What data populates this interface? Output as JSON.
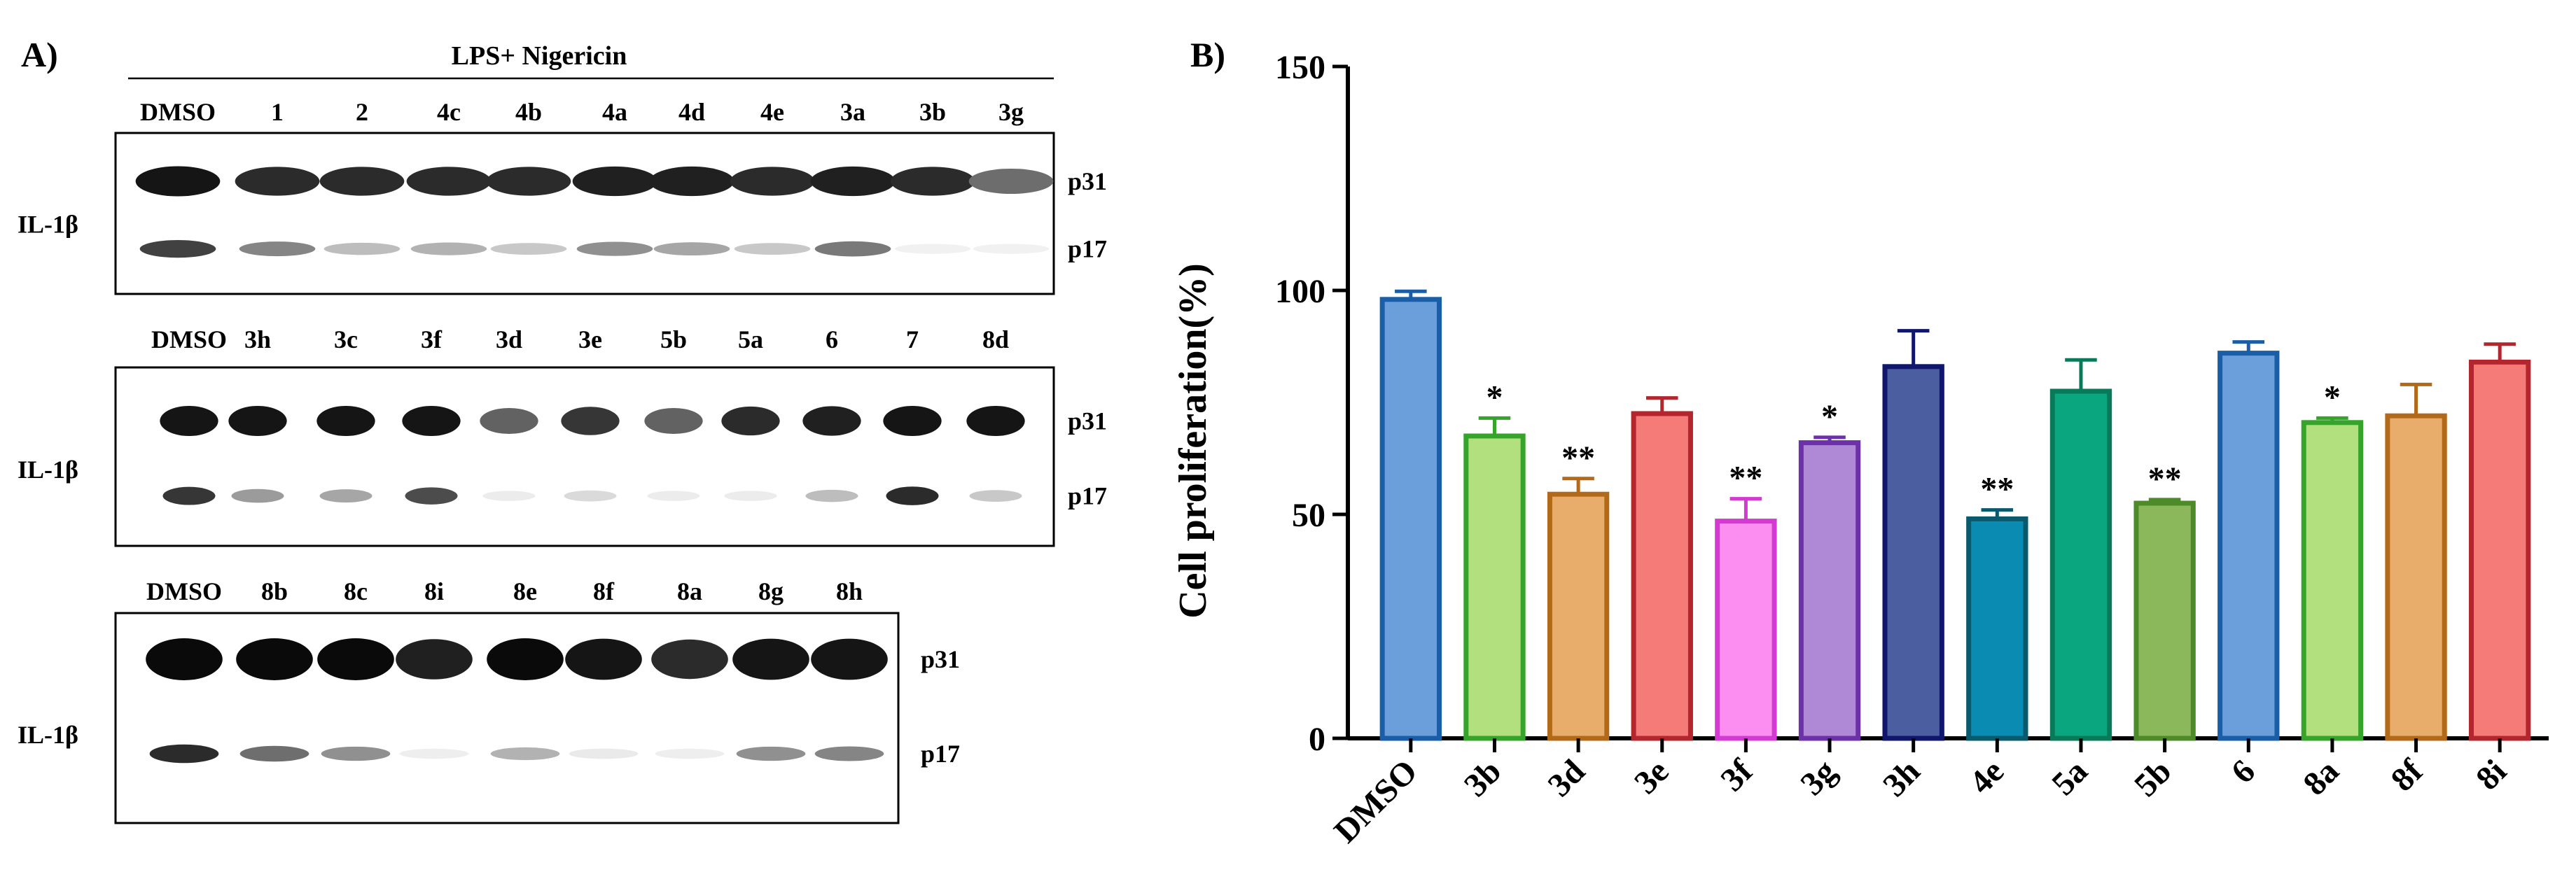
{
  "panel_a": {
    "label": "A)",
    "treatment": "LPS+ Nigericin",
    "protein": "IL-1β",
    "bands": [
      "p31",
      "p17"
    ],
    "blots": [
      {
        "lanes": [
          "DMSO",
          "1",
          "2",
          "4c",
          "4b",
          "4a",
          "4d",
          "4e",
          "3a",
          "3b",
          "3g"
        ],
        "p31_intensity": [
          0.95,
          0.85,
          0.85,
          0.85,
          0.85,
          0.9,
          0.9,
          0.85,
          0.9,
          0.85,
          0.55
        ],
        "p17_intensity": [
          0.8,
          0.5,
          0.25,
          0.3,
          0.2,
          0.45,
          0.35,
          0.2,
          0.55,
          0.02,
          0.02
        ]
      },
      {
        "lanes": [
          "DMSO",
          "3h",
          "3c",
          "3f",
          "3d",
          "3e",
          "5b",
          "5a",
          "6",
          "7",
          "8d"
        ],
        "p31_intensity": [
          0.95,
          0.95,
          0.95,
          0.95,
          0.6,
          0.8,
          0.6,
          0.85,
          0.9,
          0.95,
          0.95
        ],
        "p17_intensity": [
          0.85,
          0.4,
          0.35,
          0.75,
          0.04,
          0.12,
          0.04,
          0.04,
          0.25,
          0.9,
          0.2
        ]
      },
      {
        "lanes": [
          "DMSO",
          "8b",
          "8c",
          "8i",
          "8e",
          "8f",
          "8a",
          "8g",
          "8h"
        ],
        "p31_intensity": [
          1.0,
          1.0,
          1.0,
          0.9,
          1.0,
          0.95,
          0.85,
          0.95,
          0.95
        ],
        "p17_intensity": [
          0.9,
          0.6,
          0.45,
          0.03,
          0.3,
          0.05,
          0.03,
          0.45,
          0.5
        ]
      }
    ]
  },
  "chart_data": {
    "type": "bar",
    "label": "B)",
    "title": "",
    "xlabel": "",
    "ylabel": "Cell proliferation(%)",
    "ylim": [
      0,
      150
    ],
    "yticks": [
      0,
      50,
      100,
      150
    ],
    "categories": [
      "DMSO",
      "3b",
      "3d",
      "3e",
      "3f",
      "3g",
      "3h",
      "4e",
      "5a",
      "5b",
      "6",
      "8a",
      "8f",
      "8i"
    ],
    "values": [
      98,
      67.5,
      54.5,
      72.5,
      48.5,
      66,
      83,
      49,
      77.5,
      52.5,
      86,
      70.5,
      72,
      84
    ],
    "errors": [
      1.8,
      4,
      3.5,
      3.5,
      5,
      1.2,
      8,
      2,
      7,
      0.8,
      2.5,
      1,
      7,
      4
    ],
    "significance": [
      "",
      "*",
      "**",
      "",
      "**",
      "*",
      "",
      "**",
      "",
      "**",
      "",
      "*",
      "",
      ""
    ],
    "fill_colors": [
      "#6a9fdb",
      "#b3e07f",
      "#e8ad6a",
      "#f57b78",
      "#fc8ef2",
      "#b089d6",
      "#4a5ea0",
      "#0a8cb2",
      "#0aa67f",
      "#8cb85c",
      "#6a9fdb",
      "#b3e07f",
      "#e8ad6a",
      "#f57b78"
    ],
    "edge_colors": [
      "#1a5ea8",
      "#36a32a",
      "#b36a18",
      "#b3262e",
      "#d33ad1",
      "#6c30a8",
      "#10166b",
      "#0a5a6e",
      "#087a5a",
      "#4d8a2a",
      "#1a5ea8",
      "#36a32a",
      "#b36a18",
      "#b3262e"
    ],
    "grid": false,
    "legend": "none"
  }
}
